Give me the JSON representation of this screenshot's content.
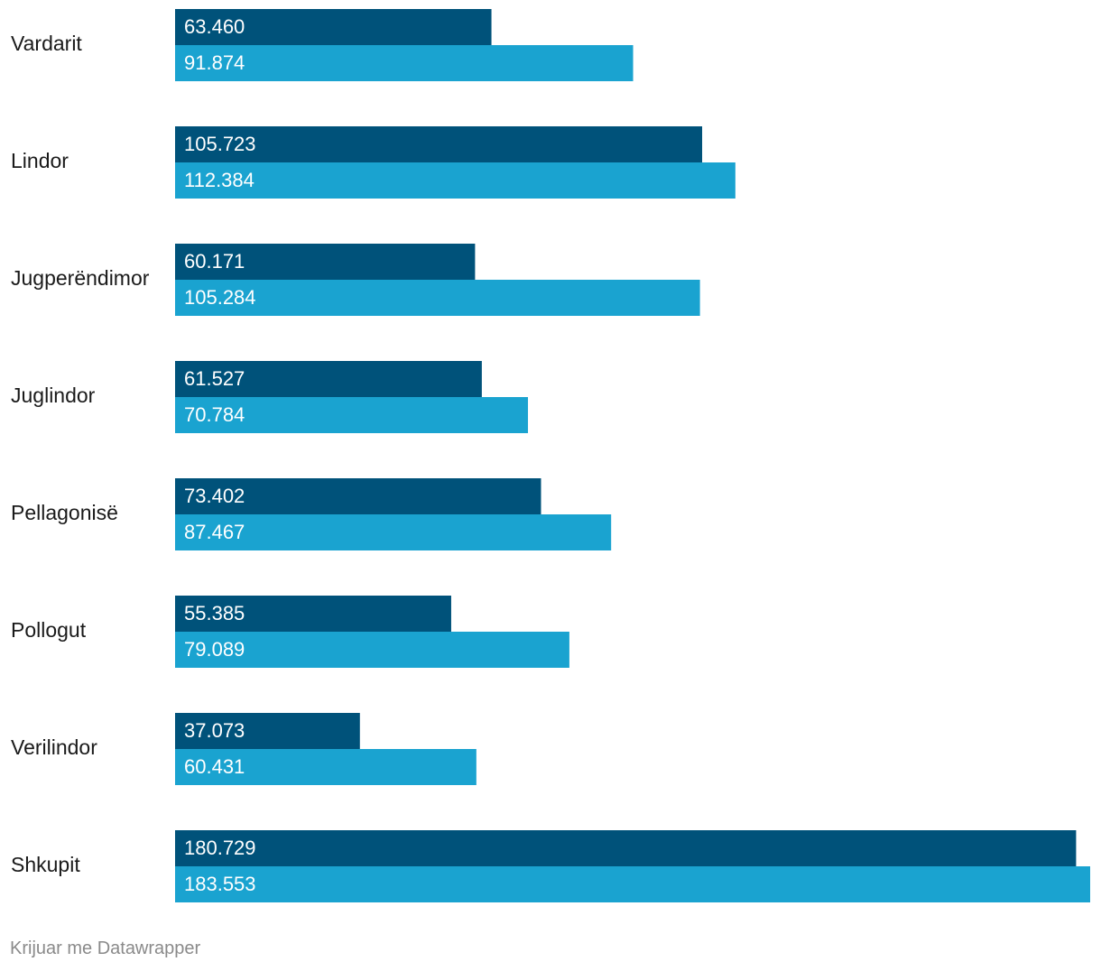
{
  "chart_data": {
    "type": "bar",
    "orientation": "horizontal",
    "title": "",
    "xlabel": "",
    "ylabel": "",
    "grid": false,
    "legend": "none",
    "categories": [
      "Vardarit",
      "Lindor",
      "Jugperëndimor",
      "Juglindor",
      "Pellagonisë",
      "Pollogut",
      "Verilindor",
      "Shkupit"
    ],
    "series": [
      {
        "name": "Seria 1",
        "color": "#00527a",
        "values": [
          63460,
          105723,
          60171,
          61527,
          73402,
          55385,
          37073,
          180729
        ],
        "labels": [
          "63.460",
          "105.723",
          "60.171",
          "61.527",
          "73.402",
          "55.385",
          "37.073",
          "180.729"
        ]
      },
      {
        "name": "Seria 2",
        "color": "#1aa3d0",
        "values": [
          91874,
          112384,
          105284,
          70784,
          87467,
          79089,
          60431,
          183553
        ],
        "labels": [
          "91.874",
          "112.384",
          "105.284",
          "70.784",
          "87.467",
          "79.089",
          "60.431",
          "183.553"
        ]
      }
    ],
    "xlim": [
      0,
      183553
    ]
  },
  "footer": {
    "credit": "Krijuar me Datawrapper"
  }
}
